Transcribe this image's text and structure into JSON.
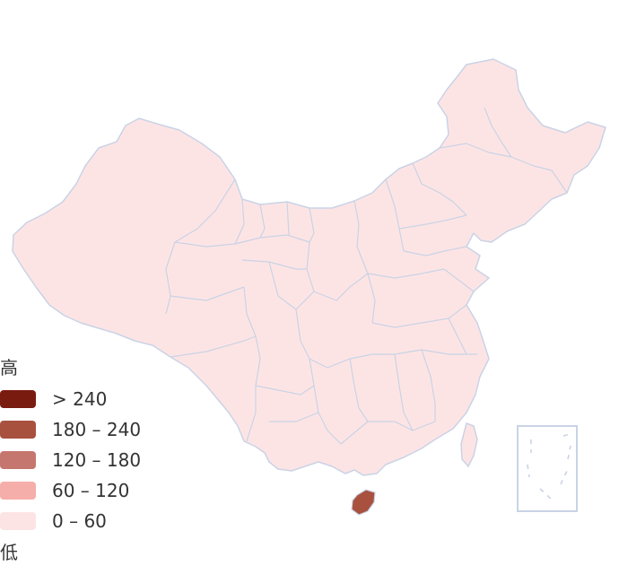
{
  "map": {
    "stroke_color": "#c9d3e6",
    "default_fill": "#fde4e4",
    "highlight_region": "Hainan",
    "highlight_fill": "#a9513f"
  },
  "legend": {
    "high_label": "高",
    "low_label": "低",
    "items": [
      {
        "label": "> 240",
        "color": "#7a1b10"
      },
      {
        "label": "180 – 240",
        "color": "#a9513f"
      },
      {
        "label": "120 – 180",
        "color": "#c5766f"
      },
      {
        "label": "60 – 120",
        "color": "#f6aeaa"
      },
      {
        "label": "0 – 60",
        "color": "#fde4e4"
      }
    ]
  }
}
